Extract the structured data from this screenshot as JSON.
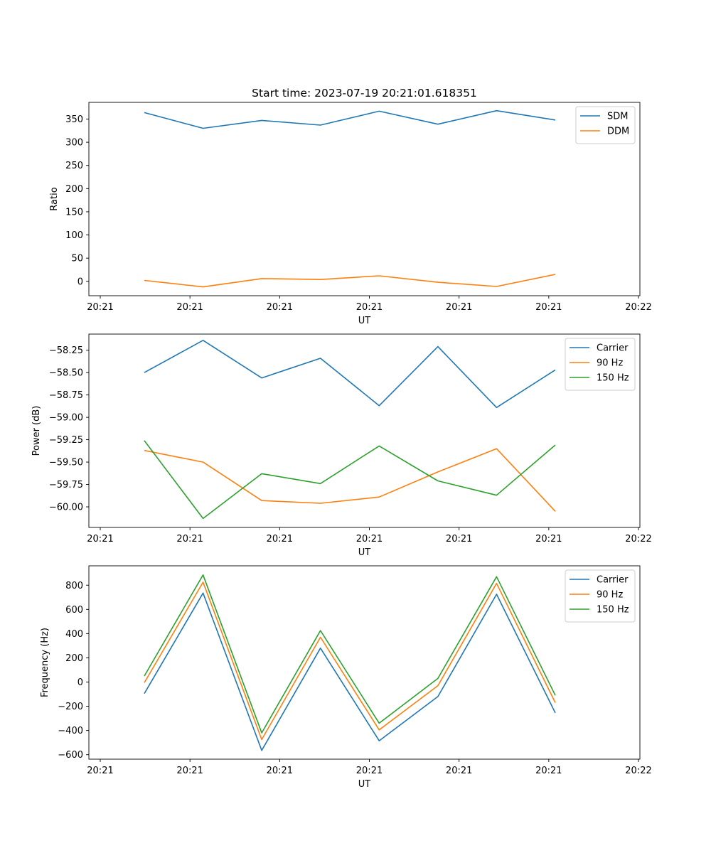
{
  "figure_title": "Start time: 2023-07-19 20:21:01.618351",
  "colors": {
    "c0": "#1f77b4",
    "c1": "#ff7f0e",
    "c2": "#2ca02c"
  },
  "chart_data": [
    {
      "type": "line",
      "title": "Start time: 2023-07-19 20:21:01.618351",
      "xlabel": "UT",
      "ylabel": "Ratio",
      "xticklabels": [
        "20:21",
        "20:21",
        "20:21",
        "20:21",
        "20:21",
        "20:21",
        "20:22"
      ],
      "xlim": [
        -0.2,
        9.0
      ],
      "x": [
        0.5,
        1.5,
        2.5,
        3.5,
        4.5,
        5.5,
        6.5,
        7.5
      ],
      "ylim": [
        -31,
        386
      ],
      "yticks": [
        0,
        50,
        100,
        150,
        200,
        250,
        300,
        350
      ],
      "legend_position": "upper right",
      "series": [
        {
          "name": "SDM",
          "color": "#1f77b4",
          "values": [
            364,
            330,
            347,
            337,
            367,
            339,
            368,
            348
          ]
        },
        {
          "name": "DDM",
          "color": "#ff7f0e",
          "values": [
            2,
            -12,
            6,
            4,
            12,
            -2,
            -11,
            15
          ]
        }
      ]
    },
    {
      "type": "line",
      "title": "",
      "xlabel": "UT",
      "ylabel": "Power (dB)",
      "xticklabels": [
        "20:21",
        "20:21",
        "20:21",
        "20:21",
        "20:21",
        "20:21",
        "20:22"
      ],
      "xlim": [
        -0.2,
        9.0
      ],
      "x": [
        0.5,
        1.5,
        2.5,
        3.5,
        4.5,
        5.5,
        6.5,
        7.5
      ],
      "ylim": [
        -60.23,
        -58.07
      ],
      "yticks": [
        -60.0,
        -59.75,
        -59.5,
        -59.25,
        -59.0,
        -58.75,
        -58.5,
        -58.25
      ],
      "yticklabels": [
        "−60.00",
        "−59.75",
        "−59.50",
        "−59.25",
        "−59.00",
        "−58.75",
        "−58.50",
        "−58.25"
      ],
      "legend_position": "upper right",
      "series": [
        {
          "name": "Carrier",
          "color": "#1f77b4",
          "values": [
            -58.5,
            -58.14,
            -58.56,
            -58.34,
            -58.87,
            -58.21,
            -58.89,
            -58.47
          ]
        },
        {
          "name": "90 Hz",
          "color": "#ff7f0e",
          "values": [
            -59.37,
            -59.5,
            -59.93,
            -59.96,
            -59.89,
            -59.61,
            -59.35,
            -60.05
          ]
        },
        {
          "name": "150 Hz",
          "color": "#2ca02c",
          "values": [
            -59.26,
            -60.13,
            -59.63,
            -59.74,
            -59.32,
            -59.71,
            -59.87,
            -59.31
          ]
        }
      ]
    },
    {
      "type": "line",
      "title": "",
      "xlabel": "UT",
      "ylabel": "Frequency (Hz)",
      "xticklabels": [
        "20:21",
        "20:21",
        "20:21",
        "20:21",
        "20:21",
        "20:21",
        "20:22"
      ],
      "xlim": [
        -0.2,
        9.0
      ],
      "x": [
        0.5,
        1.5,
        2.5,
        3.5,
        4.5,
        5.5,
        6.5,
        7.5
      ],
      "ylim": [
        -637,
        960
      ],
      "yticks": [
        -600,
        -400,
        -200,
        0,
        200,
        400,
        600,
        800
      ],
      "yticklabels": [
        "−600",
        "−400",
        "−200",
        "0",
        "200",
        "400",
        "600",
        "800"
      ],
      "legend_position": "upper right",
      "series": [
        {
          "name": "Carrier",
          "color": "#1f77b4",
          "values": [
            -95,
            735,
            -565,
            280,
            -485,
            -120,
            725,
            -255
          ]
        },
        {
          "name": "90 Hz",
          "color": "#ff7f0e",
          "values": [
            -5,
            825,
            -475,
            370,
            -395,
            -30,
            815,
            -170
          ]
        },
        {
          "name": "150 Hz",
          "color": "#2ca02c",
          "values": [
            50,
            885,
            -420,
            425,
            -340,
            30,
            870,
            -110
          ]
        }
      ]
    }
  ]
}
